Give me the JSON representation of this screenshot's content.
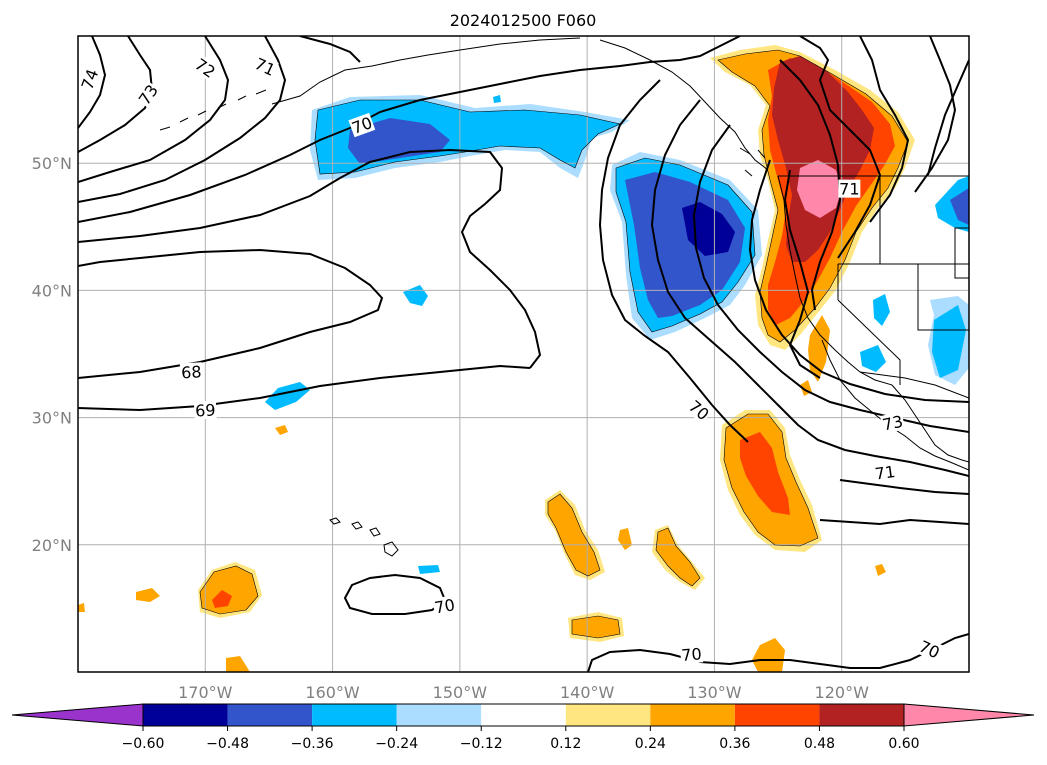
{
  "title": "2024012500 F060",
  "map": {
    "lon_range": [
      -180,
      -110
    ],
    "lat_range": [
      10,
      60
    ],
    "lon_ticks": [
      {
        "value": -170,
        "label": "170°W"
      },
      {
        "value": -160,
        "label": "160°W"
      },
      {
        "value": -150,
        "label": "150°W"
      },
      {
        "value": -140,
        "label": "140°W"
      },
      {
        "value": -130,
        "label": "130°W"
      },
      {
        "value": -120,
        "label": "120°W"
      }
    ],
    "lat_ticks": [
      {
        "value": 20,
        "label": "20°N"
      },
      {
        "value": 30,
        "label": "30°N"
      },
      {
        "value": 40,
        "label": "40°N"
      },
      {
        "value": 50,
        "label": "50°N"
      }
    ],
    "grid": true,
    "contour_labels": [
      {
        "text": "74",
        "lon": -179.1,
        "lat": 56.6,
        "rot": -70
      },
      {
        "text": "73",
        "lon": -174.5,
        "lat": 55.4,
        "rot": -55
      },
      {
        "text": "72",
        "lon": -170.0,
        "lat": 57.5,
        "rot": 35
      },
      {
        "text": "71",
        "lon": -165.3,
        "lat": 57.6,
        "rot": 25
      },
      {
        "text": "70",
        "lon": -157.7,
        "lat": 53.0,
        "rot": -20
      },
      {
        "text": "68",
        "lon": -171.1,
        "lat": 33.6,
        "rot": -3
      },
      {
        "text": "69",
        "lon": -170.0,
        "lat": 30.6,
        "rot": -3
      },
      {
        "text": "70",
        "lon": -131.2,
        "lat": 30.6,
        "rot": 40
      },
      {
        "text": "73",
        "lon": -116.0,
        "lat": 29.6,
        "rot": -12
      },
      {
        "text": "71",
        "lon": -116.6,
        "lat": 25.7,
        "rot": -8
      },
      {
        "text": "70",
        "lon": -151.2,
        "lat": 15.2,
        "rot": -10
      },
      {
        "text": "70",
        "lon": -131.8,
        "lat": 11.4,
        "rot": -5
      },
      {
        "text": "70",
        "lon": -113.1,
        "lat": 11.8,
        "rot": 25
      },
      {
        "text": "71",
        "lon": -119.4,
        "lat": 48.0,
        "rot": 0
      }
    ]
  },
  "colorbar": {
    "ticks": [
      "−0.60",
      "−0.48",
      "−0.36",
      "−0.24",
      "−0.12",
      "0.12",
      "0.24",
      "0.36",
      "0.48",
      "0.60"
    ],
    "colors": [
      "#9933cc",
      "#000099",
      "#3355cc",
      "#00bbff",
      "#aaddff",
      "#ffffff",
      "#ffe680",
      "#ffa500",
      "#ff4400",
      "#b22222",
      "#ff88aa"
    ]
  },
  "fill_colors": {
    "neg1": "#aaddff",
    "neg2": "#00bbff",
    "neg3": "#3355cc",
    "neg4": "#000099",
    "pos1": "#ffe680",
    "pos2": "#ffa500",
    "pos3": "#ff4400",
    "pos4": "#b22222",
    "pos5": "#ff88aa"
  }
}
